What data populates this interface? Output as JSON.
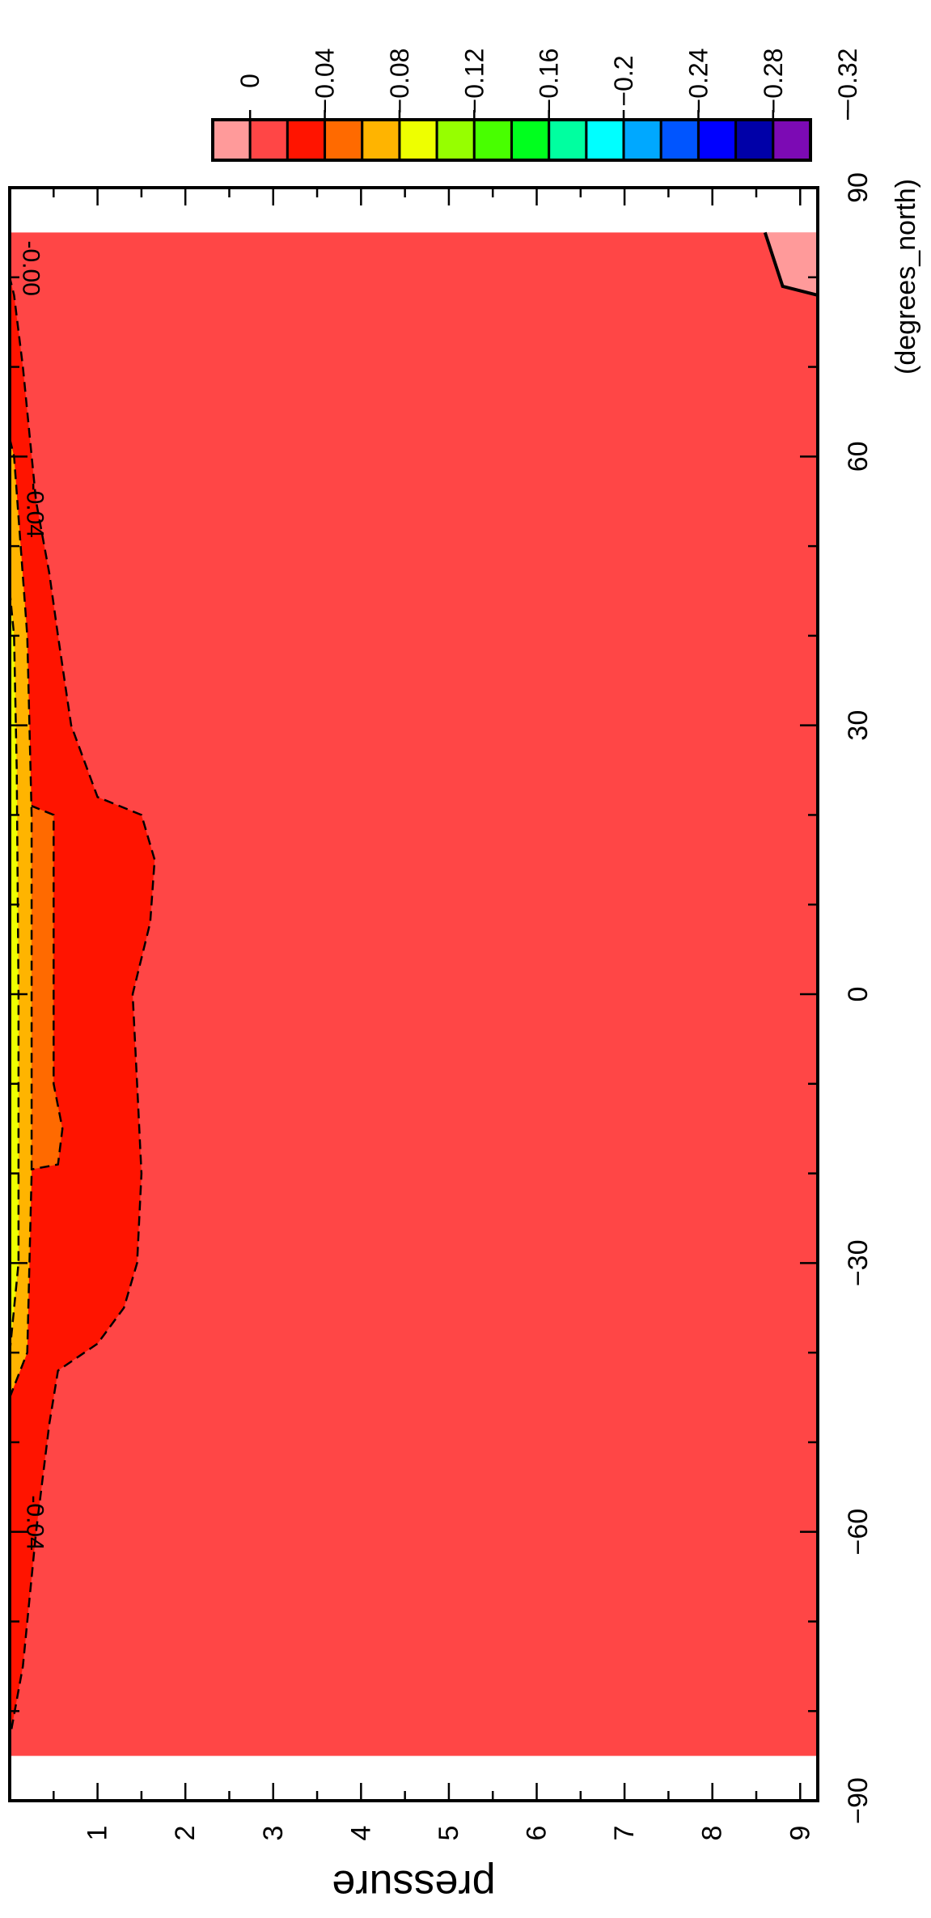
{
  "chart_data": {
    "type": "heatmap",
    "title": "",
    "xlabel": "(degrees_north)",
    "ylabel": "pressure",
    "xlim": [
      -90,
      90
    ],
    "ylim": [
      0.0,
      9.2
    ],
    "x_ticks": [
      -90,
      -60,
      -30,
      0,
      30,
      60,
      90
    ],
    "x_tick_labels": [
      "−90",
      "−60",
      "−30",
      "0",
      "30",
      "60",
      "90"
    ],
    "y_ticks": [
      1,
      2,
      3,
      4,
      5,
      6,
      7,
      8,
      9
    ],
    "y_tick_labels": [
      "1",
      "2",
      "3",
      "4",
      "5",
      "6",
      "7",
      "8",
      "9"
    ],
    "data_lat_range": [
      -85,
      85
    ],
    "background_level": "0 to −0.04",
    "colorbar": {
      "levels": [
        "0",
        "−0.04",
        "−0.08",
        "−0.12",
        "−0.16",
        "−0.2",
        "−0.24",
        "−0.28",
        "−0.32"
      ],
      "colors": [
        "#FF9A9A",
        "#FF4646",
        "#FF1400",
        "#FF6A00",
        "#FFB400",
        "#EEFF00",
        "#96FF00",
        "#48FF00",
        "#00FF1E",
        "#00FFA0",
        "#00FFFF",
        "#00A8FF",
        "#0055FF",
        "#0000FF",
        "#0000A8",
        "#7C0AB4"
      ]
    },
    "contours": [
      {
        "level": "−0.04",
        "style": "dashed",
        "fill": "#FF1400",
        "points": [
          [
            -82,
            0.02
          ],
          [
            -75,
            0.15
          ],
          [
            -60,
            0.3
          ],
          [
            -48,
            0.45
          ],
          [
            -42,
            0.55
          ],
          [
            -39,
            1.0
          ],
          [
            -35,
            1.3
          ],
          [
            -30,
            1.45
          ],
          [
            -20,
            1.5
          ],
          [
            -10,
            1.45
          ],
          [
            0,
            1.4
          ],
          [
            8,
            1.6
          ],
          [
            15,
            1.65
          ],
          [
            20,
            1.5
          ],
          [
            22,
            1.0
          ],
          [
            30,
            0.7
          ],
          [
            40,
            0.55
          ],
          [
            47,
            0.45
          ],
          [
            55,
            0.3
          ],
          [
            70,
            0.15
          ],
          [
            78,
            0.05
          ],
          [
            80,
            0.0
          ]
        ]
      },
      {
        "level": "−0.08",
        "style": "dashed",
        "fill": "#FF6A00",
        "points": [
          [
            -20,
            0.0
          ],
          [
            -19,
            0.55
          ],
          [
            -15,
            0.6
          ],
          [
            -10,
            0.5
          ],
          [
            5,
            0.5
          ],
          [
            20,
            0.5
          ],
          [
            22,
            0.0
          ]
        ]
      },
      {
        "level": "−0.12",
        "style": "dashed",
        "fill": "#FFB400",
        "points": [
          [
            -45,
            0.0
          ],
          [
            -40,
            0.2
          ],
          [
            -20,
            0.25
          ],
          [
            0,
            0.25
          ],
          [
            20,
            0.25
          ],
          [
            40,
            0.2
          ],
          [
            60,
            0.05
          ],
          [
            62,
            0.0
          ]
        ]
      },
      {
        "level": "−0.16",
        "style": "dashed",
        "fill": "#EEFF00",
        "points": [
          [
            -40,
            0.0
          ],
          [
            -30,
            0.1
          ],
          [
            0,
            0.1
          ],
          [
            25,
            0.08
          ],
          [
            40,
            0.05
          ],
          [
            45,
            0.0
          ]
        ]
      },
      {
        "level": "0",
        "style": "solid",
        "fill": "#FF9A9A",
        "points": [
          [
            85,
            8.6
          ],
          [
            79,
            8.8
          ],
          [
            78,
            9.2
          ],
          [
            85,
            9.2
          ]
        ]
      }
    ],
    "contour_labels": [
      {
        "text": "-0.04",
        "x": -59,
        "y": 0.2
      },
      {
        "text": "-0.04",
        "x": 54,
        "y": 0.2
      },
      {
        "text": "-0.00",
        "x": 81,
        "y": 0.15
      }
    ]
  }
}
